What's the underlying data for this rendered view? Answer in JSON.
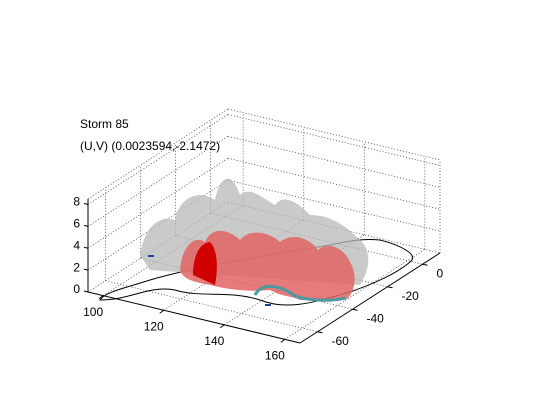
{
  "chart_data": {
    "type": "isosurface3d",
    "title": "Storm 85",
    "subtitle": "(U,V) (0.0023594,-2.1472)",
    "xlim": [
      95,
      165
    ],
    "ylim": [
      -70,
      10
    ],
    "zlim": [
      0,
      8.5
    ],
    "xticks": [
      100,
      120,
      140,
      160
    ],
    "yticks": [
      -60,
      -40,
      -20,
      0
    ],
    "zticks": [
      0,
      2,
      4,
      6,
      8
    ],
    "grid": true
  }
}
